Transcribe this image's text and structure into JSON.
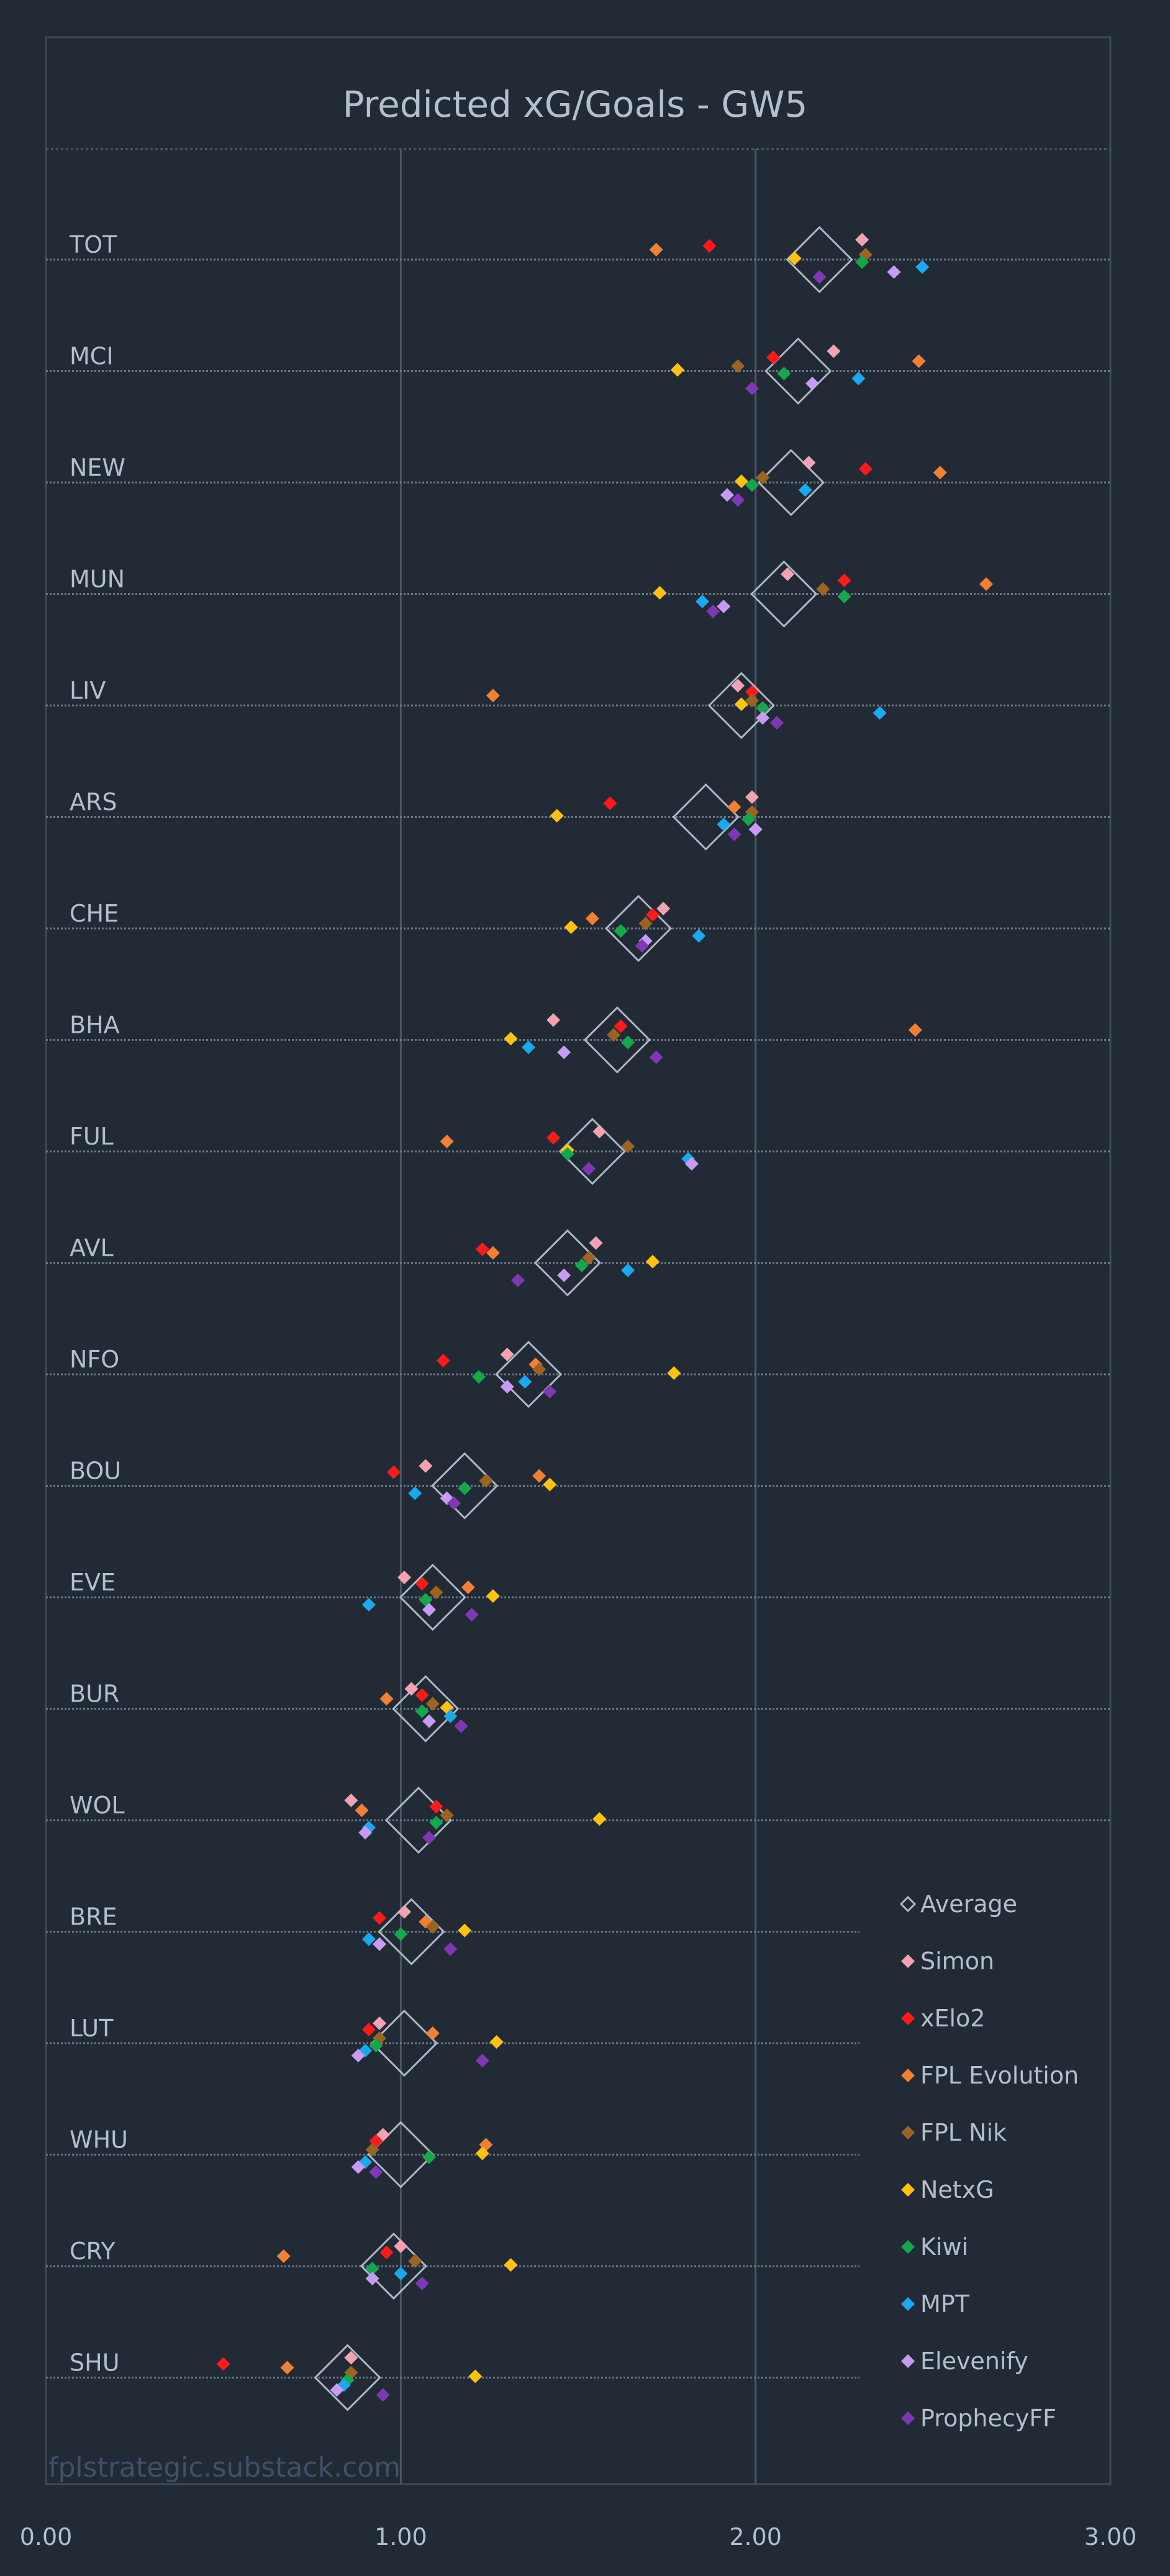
{
  "watermark": "fplstrategic.substack.com",
  "chart_data": {
    "type": "scatter",
    "title": "Predicted xG/Goals - GW5",
    "xlim": [
      0,
      3
    ],
    "x_ticks": [
      "0.00",
      "1.00",
      "2.00",
      "3.00"
    ],
    "grid": true,
    "legend_position": "bottom-right",
    "categories": [
      "TOT",
      "MCI",
      "NEW",
      "MUN",
      "LIV",
      "ARS",
      "CHE",
      "BHA",
      "FUL",
      "AVL",
      "NFO",
      "BOU",
      "EVE",
      "BUR",
      "WOL",
      "BRE",
      "LUT",
      "WHU",
      "CRY",
      "SHU"
    ],
    "series": [
      {
        "name": "Average",
        "marker": "diamond-outline",
        "color": "#aeb8c6",
        "values": [
          2.18,
          2.12,
          2.1,
          2.08,
          1.96,
          1.86,
          1.67,
          1.61,
          1.54,
          1.47,
          1.36,
          1.18,
          1.09,
          1.07,
          1.05,
          1.03,
          1.01,
          1.0,
          0.98,
          0.85
        ]
      },
      {
        "name": "Simon",
        "color": "#f2a3b3",
        "values": [
          2.3,
          2.22,
          2.15,
          2.09,
          1.95,
          1.99,
          1.74,
          1.43,
          1.56,
          1.55,
          1.3,
          1.07,
          1.01,
          1.03,
          0.86,
          1.01,
          0.94,
          0.95,
          1.0,
          0.86
        ]
      },
      {
        "name": "xElo2",
        "color": "#ff1a1a",
        "values": [
          1.87,
          2.05,
          2.31,
          2.25,
          1.99,
          1.59,
          1.71,
          1.62,
          1.43,
          1.23,
          1.12,
          0.98,
          1.06,
          1.06,
          1.1,
          0.94,
          0.91,
          0.93,
          0.96,
          0.5
        ]
      },
      {
        "name": "FPL Evolution",
        "color": "#f28033",
        "values": [
          1.72,
          2.46,
          2.52,
          2.65,
          1.26,
          1.94,
          1.54,
          2.45,
          1.13,
          1.26,
          1.38,
          1.39,
          1.19,
          0.96,
          0.89,
          1.07,
          1.09,
          1.24,
          0.67,
          0.68
        ]
      },
      {
        "name": "FPL Nik",
        "color": "#9c6420",
        "values": [
          2.31,
          1.95,
          2.02,
          2.19,
          1.99,
          1.99,
          1.69,
          1.6,
          1.64,
          1.53,
          1.39,
          1.24,
          1.1,
          1.09,
          1.13,
          1.09,
          0.94,
          0.92,
          1.04,
          0.86
        ]
      },
      {
        "name": "NetxG",
        "color": "#ffc20e",
        "values": [
          2.11,
          1.78,
          1.96,
          1.73,
          1.96,
          1.44,
          1.48,
          1.31,
          1.47,
          1.71,
          1.77,
          1.42,
          1.26,
          1.13,
          1.56,
          1.18,
          1.27,
          1.23,
          1.31,
          1.21
        ]
      },
      {
        "name": "Kiwi",
        "color": "#13a84c",
        "values": [
          2.3,
          2.08,
          1.99,
          2.25,
          2.02,
          1.98,
          1.62,
          1.64,
          1.47,
          1.51,
          1.22,
          1.18,
          1.07,
          1.06,
          1.1,
          1.0,
          0.93,
          1.08,
          0.92,
          0.85
        ]
      },
      {
        "name": "MPT",
        "color": "#1aa8ef",
        "values": [
          2.47,
          2.29,
          2.14,
          1.85,
          2.35,
          1.91,
          1.84,
          1.36,
          1.81,
          1.64,
          1.35,
          1.04,
          0.91,
          1.14,
          0.91,
          0.91,
          0.9,
          0.9,
          1.0,
          0.84
        ]
      },
      {
        "name": "Elevenify",
        "color": "#c79bf2",
        "values": [
          2.39,
          2.16,
          1.92,
          1.91,
          2.02,
          2.0,
          1.69,
          1.46,
          1.82,
          1.46,
          1.3,
          1.13,
          1.08,
          1.08,
          0.9,
          0.94,
          0.88,
          0.88,
          0.92,
          0.82
        ]
      },
      {
        "name": "ProphecyFF",
        "color": "#7f38b5",
        "values": [
          2.18,
          1.99,
          1.95,
          1.88,
          2.06,
          1.94,
          1.68,
          1.72,
          1.53,
          1.33,
          1.42,
          1.15,
          1.2,
          1.17,
          1.08,
          1.14,
          1.23,
          0.93,
          1.06,
          0.95
        ]
      }
    ]
  }
}
